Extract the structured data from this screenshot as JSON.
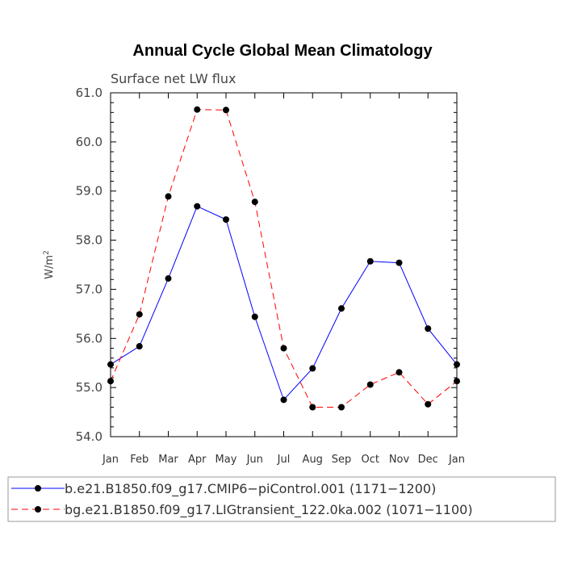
{
  "chart_data": {
    "type": "line",
    "title": "Annual Cycle Global Mean Climatology",
    "subtitle": "Surface net LW flux",
    "xlabel": "",
    "ylabel_base": "W/m",
    "ylabel_sup": "2",
    "ylim": [
      54.0,
      61.0
    ],
    "yticks": [
      "54.0",
      "55.0",
      "56.0",
      "57.0",
      "58.0",
      "59.0",
      "60.0",
      "61.0"
    ],
    "categories": [
      "Jan",
      "Feb",
      "Mar",
      "Apr",
      "May",
      "Jun",
      "Jul",
      "Aug",
      "Sep",
      "Oct",
      "Nov",
      "Dec",
      "Jan"
    ],
    "series": [
      {
        "name": "b.e21.B1850.f09_g17.CMIP6−piControl.001 (1171−1200)",
        "color": "#0000ff",
        "dash": "solid",
        "values": [
          55.47,
          55.84,
          57.22,
          58.69,
          58.42,
          56.44,
          54.75,
          55.39,
          56.61,
          57.57,
          57.54,
          56.2,
          55.47
        ]
      },
      {
        "name": "bg.e21.B1850.f09_g17.LIGtransient_122.0ka.002 (1071−1100)",
        "color": "#ff0000",
        "dash": "dashed",
        "values": [
          55.13,
          56.49,
          58.89,
          60.66,
          60.65,
          58.78,
          55.8,
          54.6,
          54.6,
          55.06,
          55.31,
          54.66,
          55.13
        ]
      }
    ],
    "legend_position": "bottom"
  }
}
